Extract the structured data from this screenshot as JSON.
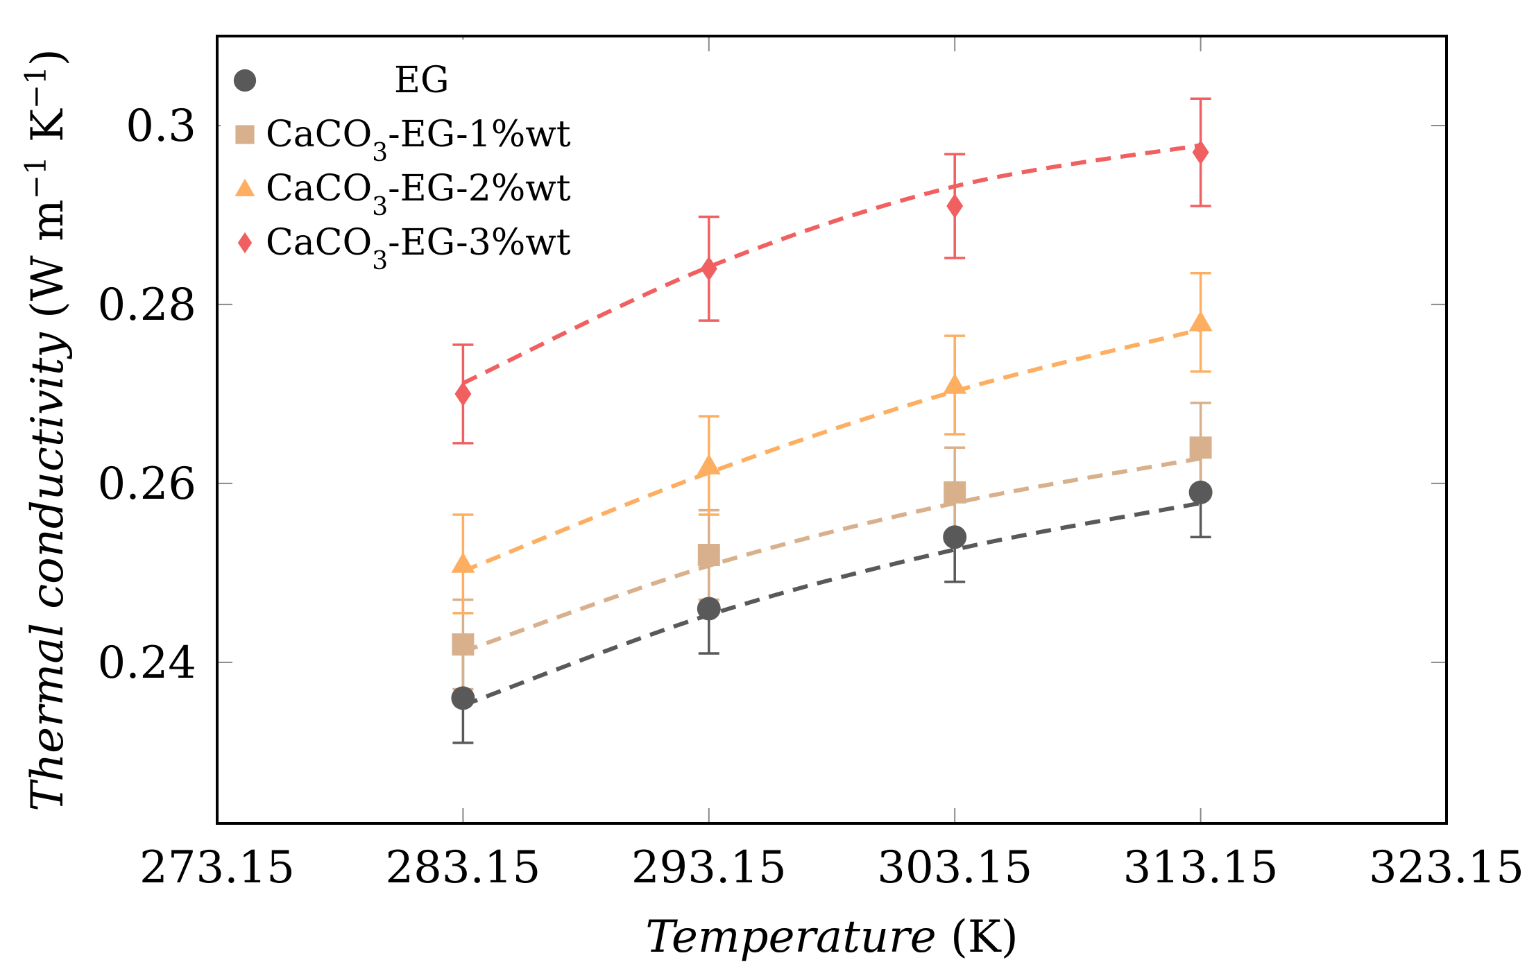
{
  "chart_data": {
    "type": "scatter",
    "xlabel_italic": "Temperature",
    "xlabel_unit": "(K)",
    "ylabel_italic": "Thermal conductivity",
    "ylabel_unit_prefix": "(W m",
    "ylabel_unit_mid": " K",
    "ylabel_unit_suffix": ")",
    "ylabel_exponent": "−1",
    "xlim": [
      273.15,
      323.15
    ],
    "ylim": [
      0.222,
      0.31
    ],
    "x_ticks": [
      273.15,
      283.15,
      293.15,
      303.15,
      313.15,
      323.15
    ],
    "x_tick_labels": [
      "273.15",
      "283.15",
      "293.15",
      "303.15",
      "313.15",
      "323.15"
    ],
    "y_ticks": [
      0.24,
      0.26,
      0.28,
      0.3
    ],
    "y_tick_labels": [
      "0.24",
      "0.26",
      "0.28",
      "0.3"
    ],
    "grid": false,
    "legend_position": "top-left",
    "series": [
      {
        "name": "EG",
        "legend": {
          "prefix": "EG",
          "sub": "",
          "suffix": ""
        },
        "marker": "circle",
        "color": "#595959",
        "x": [
          283.15,
          293.15,
          303.15,
          313.15
        ],
        "y": [
          0.236,
          0.246,
          0.254,
          0.259
        ],
        "yerr": [
          0.005,
          0.005,
          0.005,
          0.005
        ],
        "fit": [
          0.2352,
          0.2453,
          0.2526,
          0.2578
        ]
      },
      {
        "name": "CaCO3-EG-1%wt",
        "legend": {
          "prefix": "CaCO",
          "sub": "3",
          "suffix": "-EG-1%wt"
        },
        "marker": "square",
        "color": "#d8b08c",
        "x": [
          283.15,
          293.15,
          303.15,
          313.15
        ],
        "y": [
          0.242,
          0.252,
          0.259,
          0.264
        ],
        "yerr": [
          0.005,
          0.005,
          0.005,
          0.005
        ],
        "fit": [
          0.2412,
          0.2508,
          0.2578,
          0.2628
        ]
      },
      {
        "name": "CaCO3-EG-2%wt",
        "legend": {
          "prefix": "CaCO",
          "sub": "3",
          "suffix": "-EG-2%wt"
        },
        "marker": "triangle",
        "color": "#fdae61",
        "x": [
          283.15,
          293.15,
          303.15,
          313.15
        ],
        "y": [
          0.251,
          0.262,
          0.271,
          0.278
        ],
        "yerr": [
          0.0055,
          0.0055,
          0.0055,
          0.0055
        ],
        "fit": [
          0.2502,
          0.2612,
          0.2703,
          0.2772
        ]
      },
      {
        "name": "CaCO3-EG-3%wt",
        "legend": {
          "prefix": "CaCO",
          "sub": "3",
          "suffix": "-EG-3%wt"
        },
        "marker": "diamond",
        "color": "#f06060",
        "x": [
          283.15,
          293.15,
          303.15,
          313.15
        ],
        "y": [
          0.27,
          0.284,
          0.291,
          0.297
        ],
        "yerr": [
          0.0055,
          0.0058,
          0.0058,
          0.006
        ],
        "fit": [
          0.2712,
          0.2842,
          0.2932,
          0.2978
        ]
      }
    ]
  }
}
